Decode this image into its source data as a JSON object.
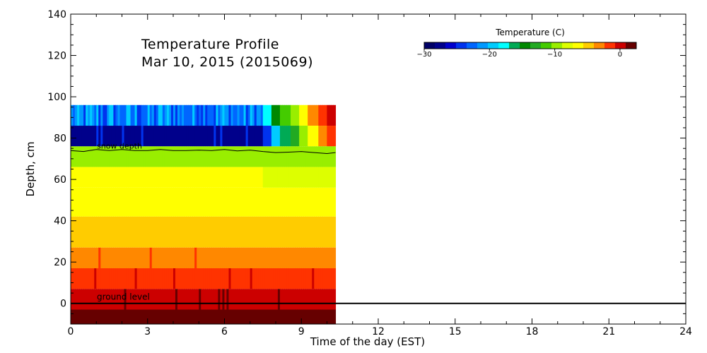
{
  "chart_data": {
    "type": "heatmap",
    "title": "Temperature Profile",
    "subtitle": "Mar 10, 2015 (2015069)",
    "xlabel": "Time of the day (EST)",
    "ylabel": "Depth, cm",
    "xlim": [
      0,
      24
    ],
    "ylim": [
      -10,
      140
    ],
    "xticks": [
      0,
      3,
      6,
      9,
      12,
      15,
      18,
      21,
      24
    ],
    "yticks": [
      0,
      20,
      40,
      60,
      80,
      100,
      120,
      140
    ],
    "grid": false,
    "data_time_range": [
      0,
      10.33
    ],
    "colorbar": {
      "title": "Temperature (C)",
      "range": [
        -30,
        2.5
      ],
      "ticks": [
        -30,
        -20,
        -10,
        0
      ],
      "placement": "top-right",
      "colors": [
        "#000066",
        "#00008b",
        "#0000cd",
        "#0033ee",
        "#0066ff",
        "#0099ff",
        "#00ccff",
        "#00ffff",
        "#00aa55",
        "#008800",
        "#22aa22",
        "#44cc00",
        "#99ee00",
        "#ddff00",
        "#ffff00",
        "#ffcc00",
        "#ff8800",
        "#ff3300",
        "#cc0000",
        "#660000"
      ]
    },
    "layers": [
      {
        "depth_range": [
          86,
          96
        ],
        "base_temp": -22,
        "late_temps": [
          -18,
          -15,
          -12,
          -9,
          -6,
          -4,
          -2,
          0
        ]
      },
      {
        "depth_range": [
          76,
          86
        ],
        "base_temp": -28,
        "late_temps": [
          -25,
          -20,
          -16,
          -13,
          -10,
          -7,
          -4,
          -1
        ]
      },
      {
        "depth_range": [
          66,
          76
        ],
        "base_temp": -9,
        "late_temps": [
          -9,
          -10
        ]
      },
      {
        "depth_range": [
          56,
          66
        ],
        "base_temp": -7,
        "late_temps": [
          -8
        ]
      },
      {
        "depth_range": [
          42,
          56
        ],
        "base_temp": -7,
        "late_temps": []
      },
      {
        "depth_range": [
          27,
          42
        ],
        "base_temp": -5,
        "late_temps": []
      },
      {
        "depth_range": [
          17,
          27
        ],
        "base_temp": -3,
        "late_temps": []
      },
      {
        "depth_range": [
          7,
          17
        ],
        "base_temp": -1.5,
        "late_temps": []
      },
      {
        "depth_range": [
          -3,
          7
        ],
        "base_temp": 0,
        "late_temps": []
      },
      {
        "depth_range": [
          -10,
          -3
        ],
        "base_temp": 1.5,
        "late_temps": []
      }
    ],
    "snow_depth": {
      "label": "snow depth",
      "x": [
        0,
        0.5,
        1,
        1.5,
        2,
        2.5,
        3,
        3.5,
        4,
        4.5,
        5,
        5.5,
        6,
        6.5,
        7,
        7.5,
        8,
        8.5,
        9,
        9.5,
        10,
        10.33
      ],
      "y": [
        74,
        73.5,
        74.5,
        74,
        74.5,
        74,
        74,
        74.5,
        74,
        74,
        74.2,
        74,
        74.5,
        73.8,
        74.2,
        73.5,
        73,
        73.2,
        73.5,
        73,
        72.5,
        73
      ]
    },
    "annotations": [
      {
        "text": "ground level",
        "depth": 0
      }
    ]
  }
}
